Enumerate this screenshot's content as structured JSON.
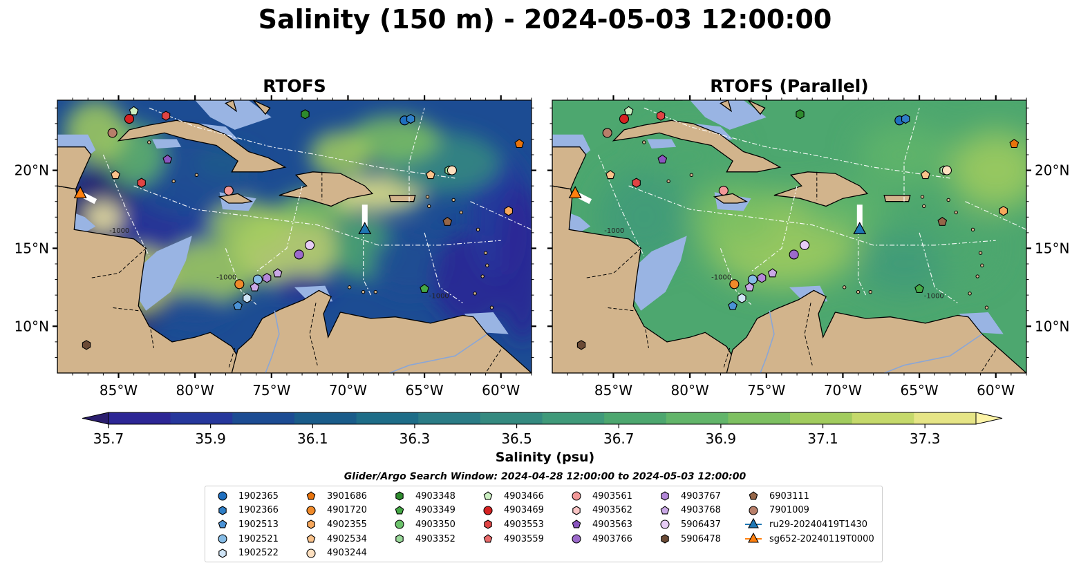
{
  "title": "Salinity (150 m) - 2024-05-03 12:00:00",
  "panels": [
    {
      "title": "RTOFS",
      "variant": "high-contrast"
    },
    {
      "title": "RTOFS (Parallel)",
      "variant": "smooth"
    }
  ],
  "lon_ticks": [
    "85°W",
    "80°W",
    "75°W",
    "70°W",
    "65°W",
    "60°W"
  ],
  "lat_ticks": [
    "20°N",
    "15°N",
    "10°N"
  ],
  "colorbar": {
    "label": "Salinity (psu)",
    "range": [
      35.7,
      37.4
    ],
    "ticks": [
      "35.7",
      "35.9",
      "36.1",
      "36.3",
      "36.5",
      "36.7",
      "36.9",
      "37.1",
      "37.3"
    ],
    "colors": [
      "#2b1e6e",
      "#2c2695",
      "#26379c",
      "#1c4c93",
      "#1a5c8a",
      "#1e6d88",
      "#2b7c86",
      "#358a80",
      "#409a7a",
      "#4da76f",
      "#62b56a",
      "#7dc061",
      "#a2cc5e",
      "#c5d96b",
      "#e6e586",
      "#fdf4a7"
    ],
    "extend": "both"
  },
  "search_window": "Glider/Argo Search Window: 2024-04-28 12:00:00 to 2024-05-03 12:00:00",
  "colors": {
    "land": "#d2b48c",
    "shelf": "#99b4e3"
  },
  "legend": [
    {
      "label": "1902365",
      "marker": "circle",
      "color": "#1f6fbf"
    },
    {
      "label": "1902366",
      "marker": "hexagon",
      "color": "#2f7fc7"
    },
    {
      "label": "1902513",
      "marker": "pentagon",
      "color": "#4a92d6"
    },
    {
      "label": "1902521",
      "marker": "circle",
      "color": "#86bce6"
    },
    {
      "label": "1902522",
      "marker": "hexagon",
      "color": "#cfe4f6"
    },
    {
      "label": "3901686",
      "marker": "pentagon",
      "color": "#e8730c"
    },
    {
      "label": "4901720",
      "marker": "circle",
      "color": "#f08a2a"
    },
    {
      "label": "4902355",
      "marker": "hexagon",
      "color": "#f7a85c"
    },
    {
      "label": "4902534",
      "marker": "pentagon",
      "color": "#fac28a"
    },
    {
      "label": "4903244",
      "marker": "circle",
      "color": "#fde0c0"
    },
    {
      "label": "4903348",
      "marker": "hexagon",
      "color": "#2e8b2e"
    },
    {
      "label": "4903349",
      "marker": "pentagon",
      "color": "#45a845"
    },
    {
      "label": "4903350",
      "marker": "circle",
      "color": "#6cc26c"
    },
    {
      "label": "4903352",
      "marker": "hexagon",
      "color": "#99d899"
    },
    {
      "label": "4903466",
      "marker": "pentagon",
      "color": "#ccf0c2"
    },
    {
      "label": "4903469",
      "marker": "circle",
      "color": "#d62222"
    },
    {
      "label": "4903553",
      "marker": "hexagon",
      "color": "#e04444"
    },
    {
      "label": "4903559",
      "marker": "pentagon",
      "color": "#ea6a6a"
    },
    {
      "label": "4903561",
      "marker": "circle",
      "color": "#f29898"
    },
    {
      "label": "4903562",
      "marker": "hexagon",
      "color": "#f8c4c4"
    },
    {
      "label": "4903563",
      "marker": "pentagon",
      "color": "#8a55bf"
    },
    {
      "label": "4903766",
      "marker": "circle",
      "color": "#9c6acb"
    },
    {
      "label": "4903767",
      "marker": "hexagon",
      "color": "#b387d8"
    },
    {
      "label": "4903768",
      "marker": "pentagon",
      "color": "#caa8e6"
    },
    {
      "label": "5906437",
      "marker": "circle",
      "color": "#e6ccf5"
    },
    {
      "label": "5906478",
      "marker": "hexagon",
      "color": "#6b4a35"
    },
    {
      "label": "6903111",
      "marker": "pentagon",
      "color": "#966648"
    },
    {
      "label": "7901009",
      "marker": "circle",
      "color": "#b87f6a"
    },
    {
      "label": "ru29-20240419T1430",
      "marker": "triangle-line",
      "color": "#1f77b4"
    },
    {
      "label": "sg652-20240119T0000",
      "marker": "triangle-line",
      "color": "#ff7f0e"
    }
  ],
  "floats": [
    {
      "id": "1902365",
      "lon": -66.3,
      "lat": 23.2
    },
    {
      "id": "1902366",
      "lon": -65.9,
      "lat": 23.3
    },
    {
      "id": "4903466",
      "lon": -84.0,
      "lat": 23.8
    },
    {
      "id": "4903469",
      "lon": -84.3,
      "lat": 23.3
    },
    {
      "id": "4903553",
      "lon": -81.9,
      "lat": 23.5
    },
    {
      "id": "4903348",
      "lon": -72.8,
      "lat": 23.6
    },
    {
      "id": "7901009",
      "lon": -85.4,
      "lat": 22.4
    },
    {
      "id": "4903563",
      "lon": -81.8,
      "lat": 20.7
    },
    {
      "id": "3901686",
      "lon": -58.8,
      "lat": 21.7
    },
    {
      "id": "4902534",
      "lon": -85.2,
      "lat": 19.7
    },
    {
      "id": "4903553",
      "lon": -83.5,
      "lat": 19.2
    },
    {
      "id": "4903561",
      "lon": -77.8,
      "lat": 18.7
    },
    {
      "id": "4902534",
      "lon": -64.6,
      "lat": 19.7
    },
    {
      "id": "4903352",
      "lon": -63.4,
      "lat": 20.0
    },
    {
      "id": "4903244",
      "lon": -63.2,
      "lat": 20.0
    },
    {
      "id": "4902355",
      "lon": -59.5,
      "lat": 17.4
    },
    {
      "id": "6903111",
      "lon": -63.5,
      "lat": 16.7
    },
    {
      "id": "5906437",
      "lon": -72.5,
      "lat": 15.2
    },
    {
      "id": "4903766",
      "lon": -73.2,
      "lat": 14.6
    },
    {
      "id": "4903768",
      "lon": -74.6,
      "lat": 13.4
    },
    {
      "id": "4903767",
      "lon": -75.3,
      "lat": 13.1
    },
    {
      "id": "1902521",
      "lon": -75.9,
      "lat": 13.0
    },
    {
      "id": "4901720",
      "lon": -77.1,
      "lat": 12.7
    },
    {
      "id": "4903768",
      "lon": -76.1,
      "lat": 12.5
    },
    {
      "id": "1902522",
      "lon": -76.6,
      "lat": 11.8
    },
    {
      "id": "1902513",
      "lon": -77.2,
      "lat": 11.3
    },
    {
      "id": "4903349",
      "lon": -65.0,
      "lat": 12.4
    },
    {
      "id": "5906478",
      "lon": -87.1,
      "lat": 8.8
    }
  ],
  "gliders": [
    {
      "id": "ru29-20240419T1430",
      "lon": -68.9,
      "lat": 16.2,
      "color": "#1f77b4",
      "track": [
        [
          -68.9,
          17.8
        ],
        [
          -68.9,
          16.2
        ]
      ]
    },
    {
      "id": "sg652-20240119T0000",
      "lon": -87.5,
      "lat": 18.5,
      "color": "#ff7f0e",
      "track": [
        [
          -86.5,
          18.0
        ],
        [
          -87.1,
          18.3
        ],
        [
          -87.5,
          18.5
        ]
      ]
    }
  ],
  "contour_labels": [
    "-1000",
    "-1000",
    "-1000"
  ],
  "map_extent": {
    "lon": [
      -89.0,
      -58.0
    ],
    "lat": [
      7.0,
      24.5
    ]
  }
}
